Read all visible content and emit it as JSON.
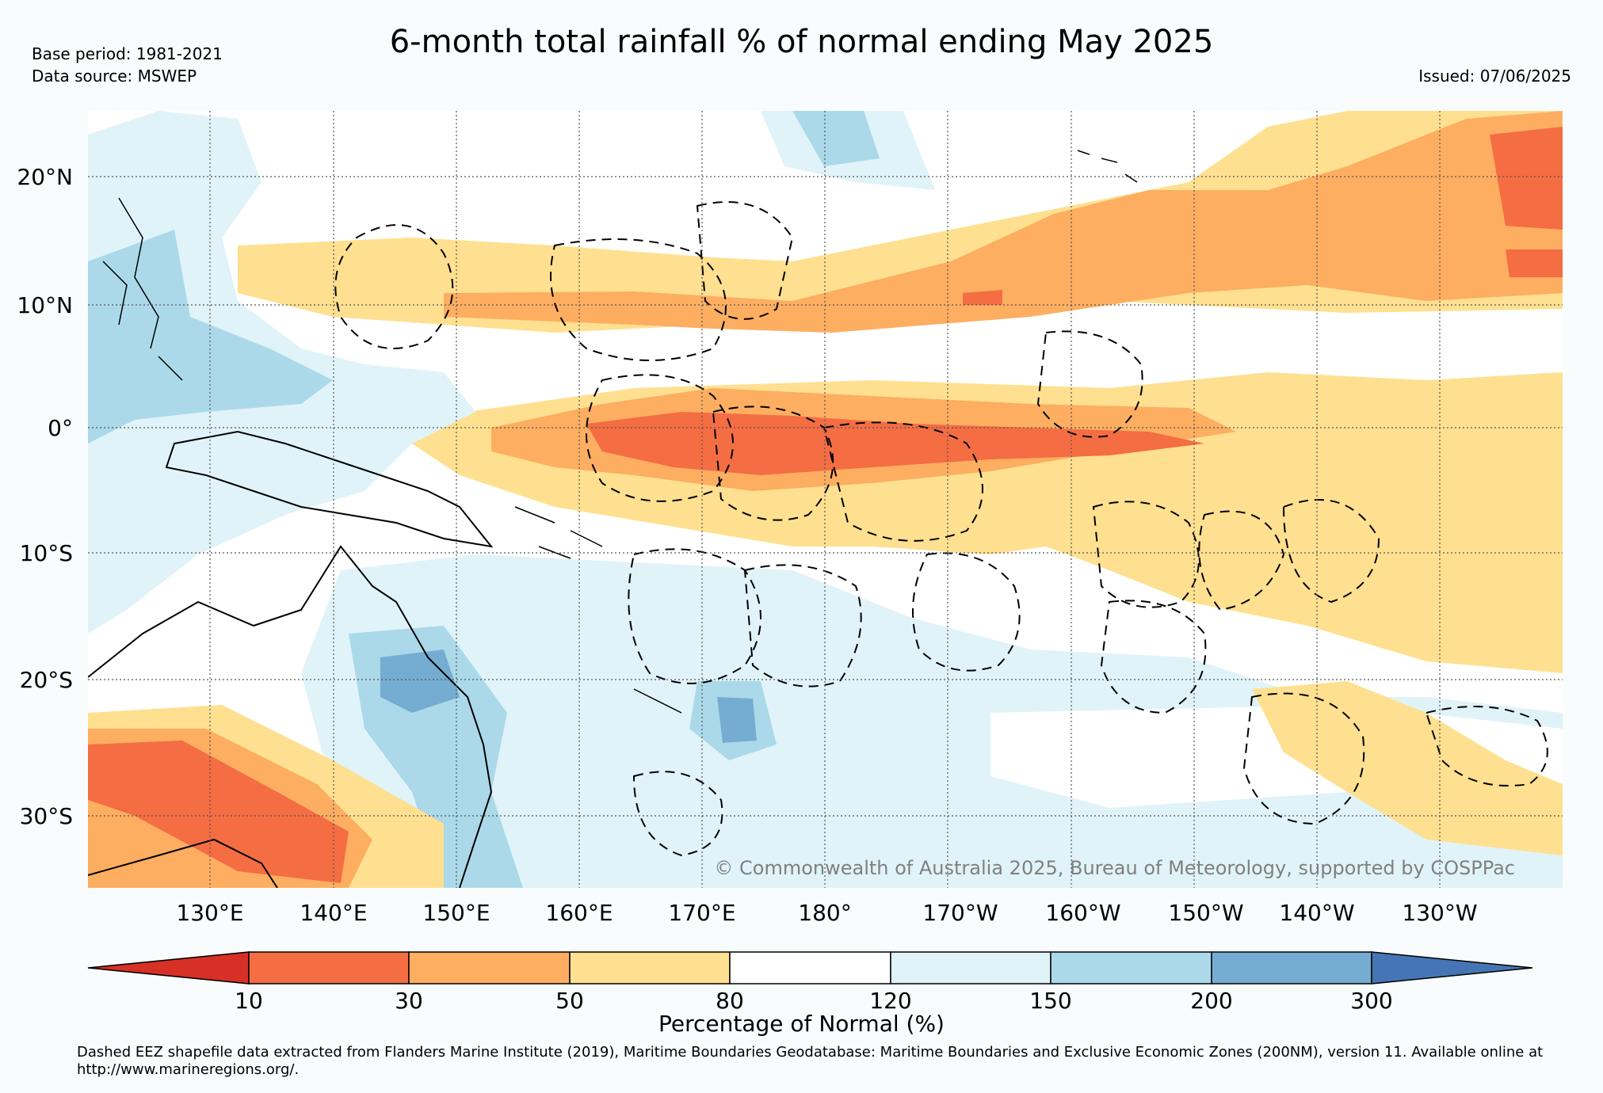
{
  "title": "6-month total rainfall % of normal ending May 2025",
  "base_period": "Base period: 1981-2021",
  "data_source": "Data source: MSWEP",
  "issued": "Issued: 07/06/2025",
  "copyright": "© Commonwealth of Australia 2025, Bureau of Meteorology, supported by COSPPac",
  "lon_labels": [
    "130°E",
    "140°E",
    "150°E",
    "160°E",
    "170°E",
    "180°",
    "170°W",
    "160°W",
    "150°W",
    "140°W",
    "130°W"
  ],
  "lat_labels": [
    "20°N",
    "10°N",
    "0°",
    "10°S",
    "20°S",
    "30°S"
  ],
  "colorbar": {
    "label": "Percentage of Normal (%)",
    "ticks": [
      "10",
      "30",
      "50",
      "80",
      "120",
      "150",
      "200",
      "300"
    ],
    "colors": [
      "#d73027",
      "#f46d43",
      "#fdae61",
      "#fee090",
      "#ffffff",
      "#e0f3f8",
      "#abd9e9",
      "#74add1",
      "#4575b4"
    ]
  },
  "footnote": "Dashed EEZ shapefile data extracted from Flanders Marine Institute (2019), Maritime Boundaries Geodatabase: Maritime Boundaries and Exclusive Economic Zones (200NM), version 11. Available online at http://www.marineregions.org/.",
  "palette": {
    "red": "#f46d43",
    "orange": "#fdae61",
    "yellow": "#fee090",
    "white": "#ffffff",
    "lightblue": "#e0f3f8",
    "midblue": "#abd9e9",
    "blue": "#74add1"
  }
}
